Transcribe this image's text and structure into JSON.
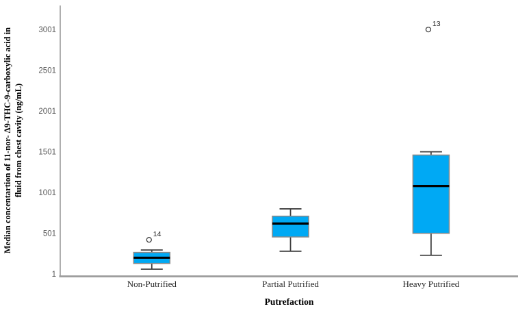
{
  "chart_data": {
    "type": "boxplot",
    "title": "",
    "xlabel": "Putrefaction",
    "ylabel": "Median concentartion of 11-nor- Δ9-THC-9-carboxylic acid in fluid from chest cavity (ng/mL)",
    "ylabel_lines": [
      "Median concentartion of 11-nor- Δ9-THC-9-carboxylic acid in",
      "fluid from chest cavity (ng/mL)"
    ],
    "categories": [
      "Non-Putrified",
      "Partial Putrified",
      "Heavy Putrified"
    ],
    "yticks": [
      1,
      501,
      1001,
      1501,
      2001,
      2501,
      3001
    ],
    "ylim": [
      1,
      3300
    ],
    "grid": false,
    "legend": "none",
    "boxes": [
      {
        "category": "Non-Putrified",
        "whisker_low": 60,
        "q1": 130,
        "median": 200,
        "q3": 265,
        "whisker_high": 295,
        "outliers": [
          {
            "value": 420,
            "label": "14"
          }
        ]
      },
      {
        "category": "Partial Putrified",
        "whisker_low": 280,
        "q1": 455,
        "median": 620,
        "q3": 710,
        "whisker_high": 800,
        "outliers": []
      },
      {
        "category": "Heavy Putrified",
        "whisker_low": 230,
        "q1": 500,
        "median": 1080,
        "q3": 1460,
        "whisker_high": 1500,
        "outliers": [
          {
            "value": 3000,
            "label": "13"
          }
        ]
      }
    ],
    "colors": {
      "box_fill": "#00A9F4",
      "box_border": "#8A8A8A",
      "median": "#000000",
      "whisker": "#3F3F3F",
      "axis": "#9B9B9B",
      "tick_text": "#595959",
      "category_text": "#262626",
      "outlier_stroke": "#3F3F3F",
      "outlier_fill": "#FFFFFF",
      "outlier_label_text": "#262626"
    }
  }
}
